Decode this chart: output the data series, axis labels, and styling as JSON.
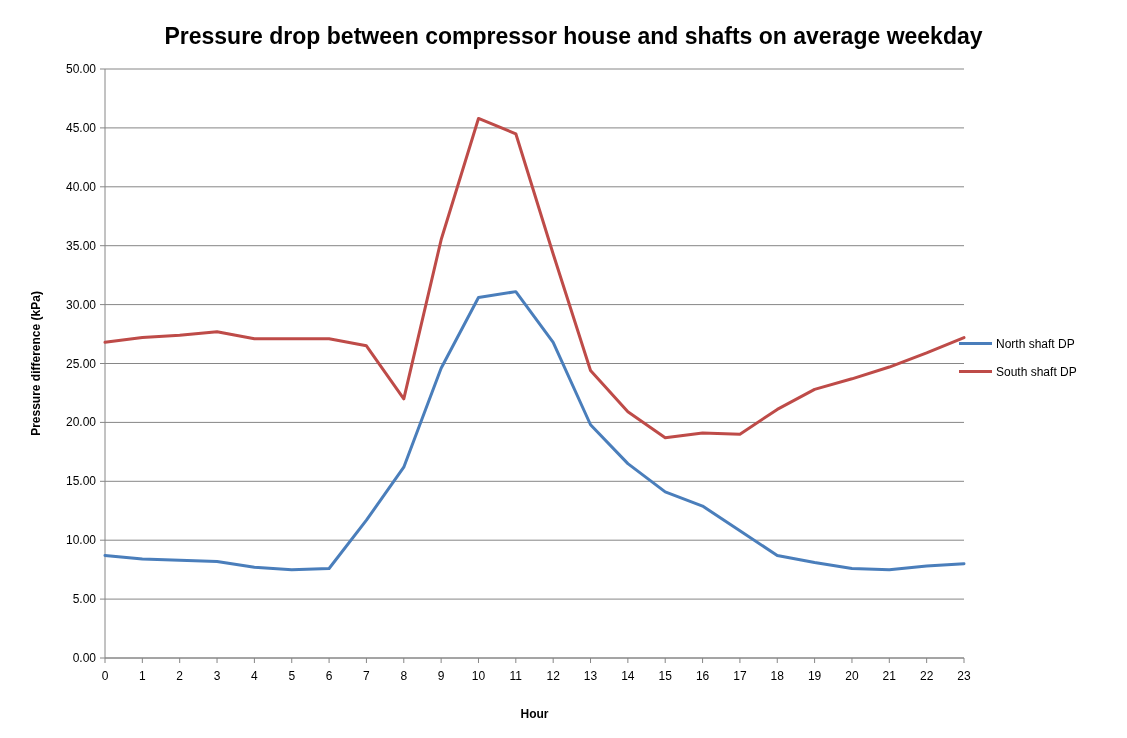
{
  "chart_data": {
    "type": "line",
    "title": "Pressure drop between compressor house and shafts on average weekday",
    "xlabel": "Hour",
    "ylabel": "Pressure difference (kPa)",
    "x": [
      0,
      1,
      2,
      3,
      4,
      5,
      6,
      7,
      8,
      9,
      10,
      11,
      12,
      13,
      14,
      15,
      16,
      17,
      18,
      19,
      20,
      21,
      22,
      23
    ],
    "series": [
      {
        "name": "North shaft DP",
        "color": "#4a7ebb",
        "values": [
          8.7,
          8.4,
          8.3,
          8.2,
          7.7,
          7.5,
          7.6,
          11.7,
          16.2,
          24.6,
          30.6,
          31.1,
          26.8,
          19.8,
          16.5,
          14.1,
          12.9,
          10.8,
          8.7,
          8.1,
          7.6,
          7.5,
          7.8,
          8.0
        ]
      },
      {
        "name": "South shaft DP",
        "color": "#be4b48",
        "values": [
          26.8,
          27.2,
          27.4,
          27.7,
          27.1,
          27.1,
          27.1,
          26.5,
          22.0,
          35.5,
          45.8,
          44.5,
          34.3,
          24.4,
          20.9,
          18.7,
          19.1,
          19.0,
          21.1,
          22.8,
          23.7,
          24.7,
          25.9,
          27.2
        ]
      }
    ],
    "xlim": [
      0,
      23
    ],
    "xticks": [
      0,
      1,
      2,
      3,
      4,
      5,
      6,
      7,
      8,
      9,
      10,
      11,
      12,
      13,
      14,
      15,
      16,
      17,
      18,
      19,
      20,
      21,
      22,
      23
    ],
    "ylim": [
      0,
      50
    ],
    "yticks": [
      {
        "value": 0,
        "label": "0.00"
      },
      {
        "value": 5,
        "label": "5.00"
      },
      {
        "value": 10,
        "label": "10.00"
      },
      {
        "value": 15,
        "label": "15.00"
      },
      {
        "value": 20,
        "label": "20.00"
      },
      {
        "value": 25,
        "label": "25.00"
      },
      {
        "value": 30,
        "label": "30.00"
      },
      {
        "value": 35,
        "label": "35.00"
      },
      {
        "value": 40,
        "label": "40.00"
      },
      {
        "value": 45,
        "label": "45.00"
      },
      {
        "value": 50,
        "label": "50.00"
      }
    ],
    "grid": "y",
    "legend": "right",
    "marker": "none",
    "line_style": "solid"
  }
}
